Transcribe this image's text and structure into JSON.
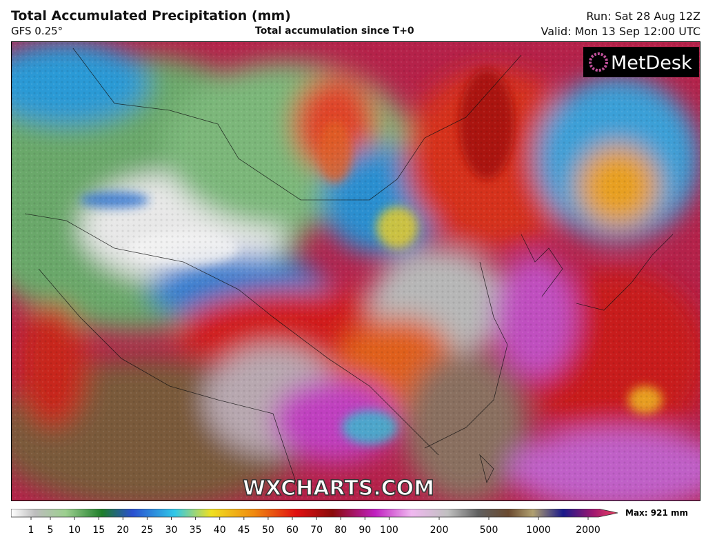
{
  "header": {
    "title": "Total Accumulated Precipitation (mm)",
    "model": "GFS 0.25°",
    "subtitle": "Total accumulation since T+0",
    "run": "Run: Sat 28 Aug 12Z",
    "valid": "Valid: Mon 13 Sep 12:00 UTC"
  },
  "logo": "MetDesk",
  "watermark": "WXCHARTS.COM",
  "colorbar": {
    "ticks": [
      1,
      5,
      10,
      15,
      20,
      25,
      30,
      35,
      40,
      45,
      50,
      60,
      70,
      80,
      90,
      100,
      200,
      500,
      1000,
      2000
    ],
    "max_label": "Max: 921 mm"
  }
}
